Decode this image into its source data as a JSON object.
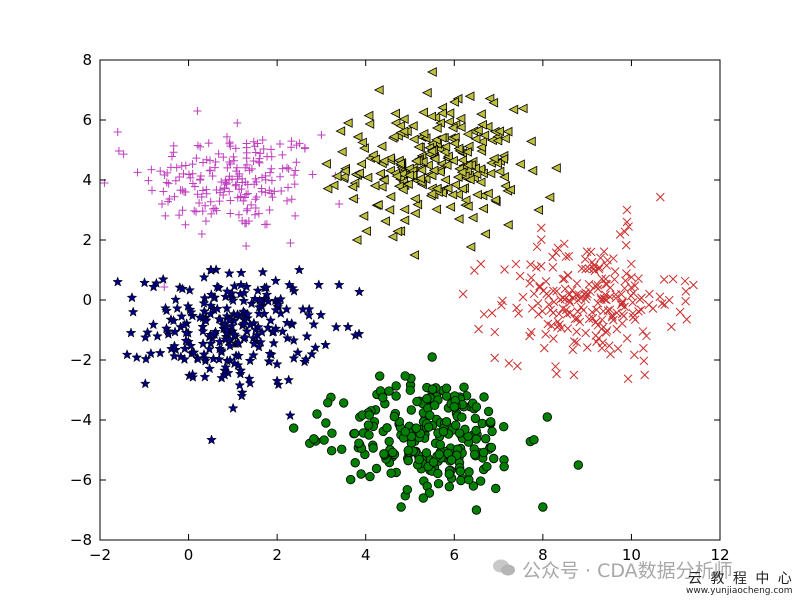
{
  "chart_data": {
    "type": "scatter",
    "title": "",
    "xlabel": "",
    "ylabel": "",
    "xlim": [
      -2,
      12
    ],
    "ylim": [
      -8,
      8
    ],
    "xticks": [
      -2,
      0,
      2,
      4,
      6,
      8,
      10,
      12
    ],
    "yticks": [
      -8,
      -6,
      -4,
      -2,
      0,
      2,
      4,
      6,
      8
    ],
    "xtick_labels": [
      "−2",
      "0",
      "2",
      "4",
      "6",
      "8",
      "10",
      "12"
    ],
    "ytick_labels": [
      "−8",
      "−6",
      "−4",
      "−2",
      "0",
      "2",
      "4",
      "6",
      "8"
    ],
    "grid": false,
    "legend": "none",
    "series": [
      {
        "marker": "plus",
        "color": "#bf3fbf",
        "center": [
          1.0,
          4.0
        ],
        "spread": [
          1.0,
          0.85
        ],
        "count": 200,
        "x": [
          -1.6,
          -1.9,
          0.2,
          3.0,
          1.3,
          0.3,
          2.3,
          -0.6,
          3.4,
          1.1
        ],
        "y": [
          5.6,
          3.9,
          6.3,
          5.5,
          1.8,
          2.2,
          1.9,
          3.2,
          3.2,
          5.9
        ]
      },
      {
        "marker": "triangle-left",
        "color": "#bfbf3f",
        "center": [
          5.5,
          4.5
        ],
        "spread": [
          0.95,
          0.95
        ],
        "count": 250,
        "x": [
          5.5,
          3.6,
          3.8,
          6.7,
          8.3,
          4.3,
          5.1,
          6.0,
          7.9
        ],
        "y": [
          7.6,
          5.9,
          2.0,
          2.2,
          4.4,
          7.0,
          1.5,
          6.6,
          3.0
        ]
      },
      {
        "marker": "star",
        "color": "#00007f",
        "center": [
          1.0,
          -1.0
        ],
        "spread": [
          0.95,
          0.95
        ],
        "count": 250,
        "x": [
          -1.6,
          -1.3,
          -2.0,
          3.6,
          3.4,
          0.5,
          1.2,
          2.5,
          2.0
        ],
        "y": [
          0.6,
          -1.1,
          -0.3,
          -0.9,
          0.5,
          1.0,
          -3.2,
          1.0,
          -2.7
        ]
      },
      {
        "marker": "x",
        "color": "#cc2e2e",
        "center": [
          9.0,
          0.0
        ],
        "spread": [
          1.0,
          1.0
        ],
        "count": 220,
        "x": [
          6.2,
          6.6,
          11.4,
          11.1,
          9.9,
          8.7,
          9.9,
          10.3,
          7.7
        ],
        "y": [
          0.2,
          1.2,
          0.5,
          -0.4,
          3.0,
          -2.5,
          2.6,
          -2.5,
          -1.2
        ]
      },
      {
        "marker": "circle",
        "color": "#007f00",
        "center": [
          5.5,
          -4.5
        ],
        "spread": [
          1.0,
          0.95
        ],
        "count": 250,
        "x": [
          5.5,
          2.9,
          3.1,
          8.8,
          8.0,
          4.8,
          6.5,
          5.3,
          8.1
        ],
        "y": [
          -1.9,
          -3.8,
          -4.1,
          -5.5,
          -6.9,
          -6.9,
          -7.0,
          -6.6,
          -3.9
        ]
      }
    ]
  },
  "watermark": {
    "brand": "公众号 · CDA数据分析师",
    "tutorial": "云 教 程 中 心",
    "site": "www.yunjiaocheng.com"
  }
}
